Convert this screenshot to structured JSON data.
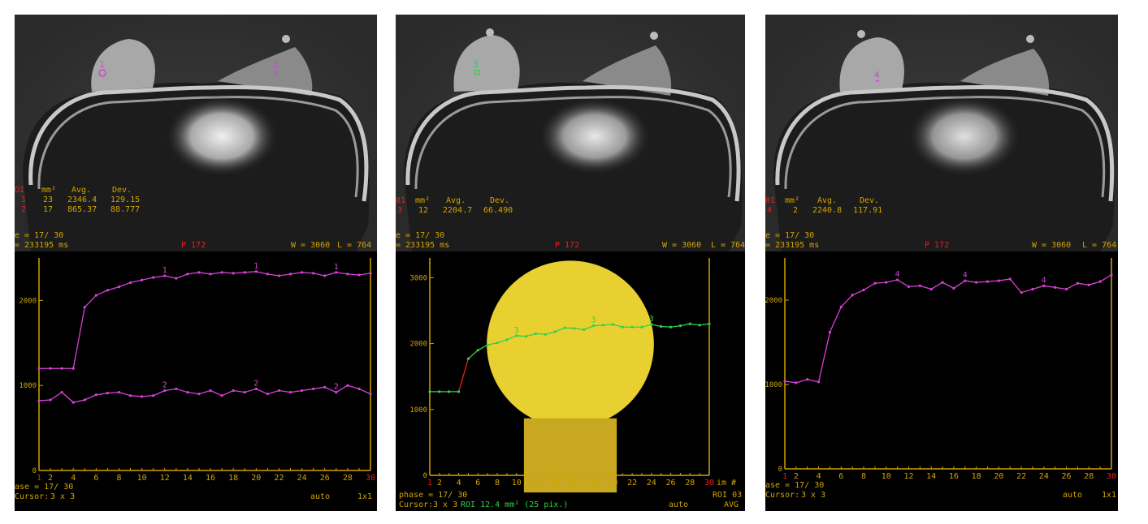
{
  "panels": [
    {
      "rois": [
        {
          "id": "1",
          "area": "23",
          "avg": "2346.4",
          "dev": "129.15"
        },
        {
          "id": "2",
          "area": "17",
          "avg": "865.37",
          "dev": "88.777"
        }
      ],
      "roi_labels": [
        "1",
        "2"
      ],
      "graph": {
        "yticks": [
          "2000",
          "1000",
          "0"
        ],
        "xticks": [
          "1",
          "2",
          "4",
          "6",
          "8",
          "10",
          "12",
          "14",
          "16",
          "18",
          "20",
          "22",
          "24",
          "26",
          "28",
          "30"
        ],
        "phase": "ase = 17/ 30",
        "cursor_label": "Cursor:",
        "cursor_value": "3 x 3",
        "auto": "auto",
        "grid": "1x1"
      }
    },
    {
      "rois": [
        {
          "id": "3",
          "area": "12",
          "avg": "2204.7",
          "dev": "66.490"
        }
      ],
      "roi_labels": [
        "3"
      ],
      "graph": {
        "yticks": [
          "3000",
          "2000",
          "1000",
          "0"
        ],
        "xticks": [
          "1",
          "2",
          "4",
          "6",
          "8",
          "10",
          "12",
          "14",
          "16",
          "18",
          "20",
          "22",
          "24",
          "26",
          "28",
          "30"
        ],
        "x_unit": "im #",
        "phase": "phase = 17/ 30",
        "cursor_label": "Cursor:",
        "cursor_value": "3 x 3",
        "roi_info": "ROI 12.4 mm² (25 pix.)",
        "roi_name": "ROI 03",
        "auto": "auto",
        "avg": "AVG"
      }
    },
    {
      "rois": [
        {
          "id": "4",
          "area": "2",
          "avg": "2240.8",
          "dev": "117.91"
        }
      ],
      "roi_labels": [
        "4"
      ],
      "graph": {
        "yticks": [
          "2000",
          "1000",
          "0"
        ],
        "xticks": [
          "1",
          "2",
          "4",
          "6",
          "8",
          "10",
          "12",
          "14",
          "16",
          "18",
          "20",
          "22",
          "24",
          "26",
          "28",
          "30"
        ],
        "phase": "ase = 17/ 30",
        "cursor_label": "Cursor:",
        "cursor_value": "3 x 3",
        "auto": "auto",
        "grid": "1x1"
      }
    }
  ],
  "mri_overlay": {
    "header_roi": "OI",
    "header_roi_alt": "01",
    "header_area": "mm²",
    "header_avg": "Avg.",
    "header_dev": "Dev.",
    "phase": "e = 17/ 30",
    "time": "= 233195 ms",
    "position": "P 172",
    "window": "W = 3060",
    "level": "L = 764"
  },
  "colors": {
    "magenta": "#d840d8",
    "green": "#33d04a",
    "axis": "#d3a400",
    "red": "#e82020"
  },
  "chart_data": [
    {
      "type": "line",
      "x": [
        1,
        2,
        3,
        4,
        5,
        6,
        7,
        8,
        9,
        10,
        11,
        12,
        13,
        14,
        15,
        16,
        17,
        18,
        19,
        20,
        21,
        22,
        23,
        24,
        25,
        26,
        27,
        28,
        29,
        30
      ],
      "ylim": [
        0,
        2500
      ],
      "series": [
        {
          "name": "1",
          "values": [
            1200,
            1200,
            1200,
            1200,
            1920,
            2060,
            2120,
            2160,
            2210,
            2240,
            2270,
            2290,
            2260,
            2310,
            2330,
            2310,
            2330,
            2320,
            2330,
            2340,
            2310,
            2290,
            2310,
            2330,
            2320,
            2290,
            2330,
            2310,
            2300,
            2320
          ]
        },
        {
          "name": "2",
          "values": [
            820,
            830,
            920,
            800,
            830,
            890,
            910,
            920,
            880,
            870,
            880,
            940,
            960,
            920,
            900,
            940,
            880,
            940,
            920,
            960,
            900,
            940,
            920,
            940,
            960,
            980,
            920,
            1000,
            960,
            900
          ]
        }
      ]
    },
    {
      "type": "line",
      "x": [
        1,
        2,
        3,
        4,
        5,
        6,
        7,
        8,
        9,
        10,
        11,
        12,
        13,
        14,
        15,
        16,
        17,
        18,
        19,
        20,
        21,
        22,
        23,
        24,
        25,
        26,
        27,
        28,
        29,
        30
      ],
      "ylim": [
        0,
        3300
      ],
      "series": [
        {
          "name": "3",
          "values": [
            1270,
            1270,
            1270,
            1270,
            1770,
            1900,
            1980,
            2010,
            2060,
            2120,
            2110,
            2150,
            2140,
            2180,
            2240,
            2230,
            2210,
            2270,
            2280,
            2290,
            2250,
            2250,
            2250,
            2290,
            2260,
            2250,
            2270,
            2300,
            2280,
            2300
          ]
        }
      ]
    },
    {
      "type": "line",
      "x": [
        1,
        2,
        3,
        4,
        5,
        6,
        7,
        8,
        9,
        10,
        11,
        12,
        13,
        14,
        15,
        16,
        17,
        18,
        19,
        20,
        21,
        22,
        23,
        24,
        25,
        26,
        27,
        28,
        29,
        30
      ],
      "ylim": [
        0,
        2500
      ],
      "series": [
        {
          "name": "4",
          "values": [
            1040,
            1020,
            1060,
            1030,
            1620,
            1920,
            2060,
            2120,
            2200,
            2210,
            2240,
            2160,
            2170,
            2130,
            2210,
            2140,
            2230,
            2210,
            2220,
            2230,
            2250,
            2090,
            2130,
            2170,
            2150,
            2130,
            2200,
            2180,
            2220,
            2300
          ]
        }
      ]
    }
  ]
}
